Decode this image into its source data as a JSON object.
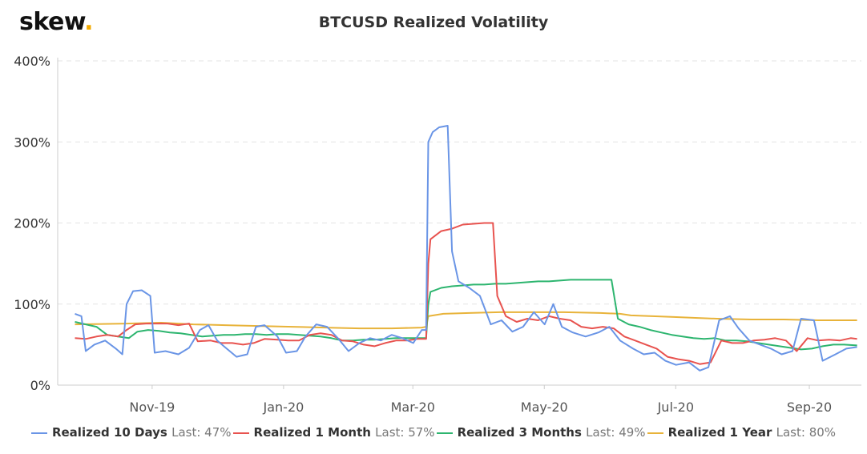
{
  "brand": {
    "name": "skew",
    "dot": "."
  },
  "chart_data": {
    "type": "line",
    "title": "BTCUSD Realized Volatility",
    "xlabel": "",
    "ylabel": "",
    "ylim": [
      0,
      400
    ],
    "yticks": [
      "0%",
      "100%",
      "200%",
      "300%",
      "400%"
    ],
    "xticks": [
      "Nov-19",
      "Jan-20",
      "Mar-20",
      "May-20",
      "Jul-20",
      "Sep-20"
    ],
    "grid": "horizontal dashed",
    "legend_position": "bottom",
    "series": [
      {
        "name": "Realized 10 Days",
        "last_label": "Last: 47%",
        "color": "#6a95e6",
        "points": [
          [
            "2019-10-01",
            88
          ],
          [
            "2019-10-04",
            85
          ],
          [
            "2019-10-06",
            42
          ],
          [
            "2019-10-10",
            50
          ],
          [
            "2019-10-15",
            55
          ],
          [
            "2019-10-20",
            45
          ],
          [
            "2019-10-23",
            38
          ],
          [
            "2019-10-25",
            100
          ],
          [
            "2019-10-28",
            116
          ],
          [
            "2019-11-01",
            117
          ],
          [
            "2019-11-05",
            110
          ],
          [
            "2019-11-07",
            40
          ],
          [
            "2019-11-12",
            42
          ],
          [
            "2019-11-18",
            38
          ],
          [
            "2019-11-23",
            46
          ],
          [
            "2019-11-28",
            68
          ],
          [
            "2019-12-02",
            74
          ],
          [
            "2019-12-06",
            55
          ],
          [
            "2019-12-10",
            46
          ],
          [
            "2019-12-15",
            35
          ],
          [
            "2019-12-20",
            38
          ],
          [
            "2019-12-24",
            72
          ],
          [
            "2019-12-28",
            74
          ],
          [
            "2020-01-03",
            60
          ],
          [
            "2020-01-07",
            40
          ],
          [
            "2020-01-12",
            42
          ],
          [
            "2020-01-16",
            60
          ],
          [
            "2020-01-21",
            75
          ],
          [
            "2020-01-26",
            72
          ],
          [
            "2020-01-31",
            58
          ],
          [
            "2020-02-05",
            42
          ],
          [
            "2020-02-10",
            52
          ],
          [
            "2020-02-15",
            58
          ],
          [
            "2020-02-20",
            55
          ],
          [
            "2020-02-25",
            62
          ],
          [
            "2020-03-01",
            58
          ],
          [
            "2020-03-06",
            52
          ],
          [
            "2020-03-10",
            68
          ],
          [
            "2020-03-12",
            68
          ],
          [
            "2020-03-13",
            300
          ],
          [
            "2020-03-15",
            312
          ],
          [
            "2020-03-18",
            318
          ],
          [
            "2020-03-22",
            320
          ],
          [
            "2020-03-24",
            165
          ],
          [
            "2020-03-27",
            128
          ],
          [
            "2020-04-01",
            120
          ],
          [
            "2020-04-06",
            110
          ],
          [
            "2020-04-11",
            75
          ],
          [
            "2020-04-16",
            80
          ],
          [
            "2020-04-21",
            66
          ],
          [
            "2020-04-26",
            72
          ],
          [
            "2020-05-01",
            90
          ],
          [
            "2020-05-06",
            75
          ],
          [
            "2020-05-10",
            100
          ],
          [
            "2020-05-14",
            72
          ],
          [
            "2020-05-19",
            65
          ],
          [
            "2020-05-25",
            60
          ],
          [
            "2020-05-31",
            65
          ],
          [
            "2020-06-05",
            72
          ],
          [
            "2020-06-10",
            55
          ],
          [
            "2020-06-16",
            45
          ],
          [
            "2020-06-21",
            38
          ],
          [
            "2020-06-26",
            40
          ],
          [
            "2020-07-01",
            30
          ],
          [
            "2020-07-06",
            25
          ],
          [
            "2020-07-12",
            28
          ],
          [
            "2020-07-17",
            18
          ],
          [
            "2020-07-21",
            22
          ],
          [
            "2020-07-26",
            80
          ],
          [
            "2020-07-31",
            85
          ],
          [
            "2020-08-04",
            70
          ],
          [
            "2020-08-09",
            55
          ],
          [
            "2020-08-14",
            50
          ],
          [
            "2020-08-19",
            45
          ],
          [
            "2020-08-24",
            38
          ],
          [
            "2020-08-29",
            42
          ],
          [
            "2020-09-02",
            82
          ],
          [
            "2020-09-08",
            80
          ],
          [
            "2020-09-12",
            30
          ],
          [
            "2020-09-18",
            38
          ],
          [
            "2020-09-23",
            45
          ],
          [
            "2020-09-28",
            47
          ]
        ]
      },
      {
        "name": "Realized 1 Month",
        "last_label": "Last: 57%",
        "color": "#e8534f",
        "points": [
          [
            "2019-10-01",
            58
          ],
          [
            "2019-10-06",
            57
          ],
          [
            "2019-10-11",
            60
          ],
          [
            "2019-10-16",
            62
          ],
          [
            "2019-10-21",
            60
          ],
          [
            "2019-10-25",
            68
          ],
          [
            "2019-10-29",
            75
          ],
          [
            "2019-11-03",
            76
          ],
          [
            "2019-11-08",
            76
          ],
          [
            "2019-11-13",
            76
          ],
          [
            "2019-11-18",
            74
          ],
          [
            "2019-11-23",
            76
          ],
          [
            "2019-11-27",
            54
          ],
          [
            "2019-12-03",
            55
          ],
          [
            "2019-12-08",
            52
          ],
          [
            "2019-12-13",
            52
          ],
          [
            "2019-12-18",
            50
          ],
          [
            "2019-12-23",
            52
          ],
          [
            "2019-12-28",
            57
          ],
          [
            "2020-01-03",
            56
          ],
          [
            "2020-01-08",
            55
          ],
          [
            "2020-01-13",
            55
          ],
          [
            "2020-01-18",
            62
          ],
          [
            "2020-01-23",
            64
          ],
          [
            "2020-01-28",
            62
          ],
          [
            "2020-02-02",
            55
          ],
          [
            "2020-02-07",
            54
          ],
          [
            "2020-02-12",
            50
          ],
          [
            "2020-02-17",
            48
          ],
          [
            "2020-02-22",
            52
          ],
          [
            "2020-02-27",
            55
          ],
          [
            "2020-03-03",
            55
          ],
          [
            "2020-03-08",
            57
          ],
          [
            "2020-03-12",
            57
          ],
          [
            "2020-03-13",
            150
          ],
          [
            "2020-03-14",
            180
          ],
          [
            "2020-03-19",
            190
          ],
          [
            "2020-03-24",
            193
          ],
          [
            "2020-03-29",
            198
          ],
          [
            "2020-04-03",
            199
          ],
          [
            "2020-04-08",
            200
          ],
          [
            "2020-04-12",
            200
          ],
          [
            "2020-04-14",
            110
          ],
          [
            "2020-04-18",
            85
          ],
          [
            "2020-04-23",
            78
          ],
          [
            "2020-04-28",
            82
          ],
          [
            "2020-05-03",
            80
          ],
          [
            "2020-05-08",
            85
          ],
          [
            "2020-05-13",
            82
          ],
          [
            "2020-05-18",
            80
          ],
          [
            "2020-05-23",
            72
          ],
          [
            "2020-05-28",
            70
          ],
          [
            "2020-06-02",
            72
          ],
          [
            "2020-06-07",
            70
          ],
          [
            "2020-06-12",
            60
          ],
          [
            "2020-06-17",
            55
          ],
          [
            "2020-06-22",
            50
          ],
          [
            "2020-06-27",
            45
          ],
          [
            "2020-07-02",
            35
          ],
          [
            "2020-07-07",
            32
          ],
          [
            "2020-07-12",
            30
          ],
          [
            "2020-07-17",
            26
          ],
          [
            "2020-07-22",
            28
          ],
          [
            "2020-07-27",
            55
          ],
          [
            "2020-08-01",
            52
          ],
          [
            "2020-08-06",
            52
          ],
          [
            "2020-08-11",
            55
          ],
          [
            "2020-08-16",
            56
          ],
          [
            "2020-08-21",
            58
          ],
          [
            "2020-08-26",
            55
          ],
          [
            "2020-08-31",
            42
          ],
          [
            "2020-09-05",
            58
          ],
          [
            "2020-09-10",
            55
          ],
          [
            "2020-09-15",
            56
          ],
          [
            "2020-09-20",
            55
          ],
          [
            "2020-09-25",
            58
          ],
          [
            "2020-09-28",
            57
          ]
        ]
      },
      {
        "name": "Realized 3 Months",
        "last_label": "Last: 49%",
        "color": "#2db56f",
        "points": [
          [
            "2019-10-01",
            78
          ],
          [
            "2019-10-06",
            75
          ],
          [
            "2019-10-11",
            72
          ],
          [
            "2019-10-16",
            62
          ],
          [
            "2019-10-21",
            60
          ],
          [
            "2019-10-26",
            58
          ],
          [
            "2019-10-30",
            66
          ],
          [
            "2019-11-04",
            68
          ],
          [
            "2019-11-09",
            67
          ],
          [
            "2019-11-14",
            65
          ],
          [
            "2019-11-19",
            64
          ],
          [
            "2019-11-24",
            62
          ],
          [
            "2019-11-29",
            60
          ],
          [
            "2019-12-04",
            61
          ],
          [
            "2019-12-09",
            62
          ],
          [
            "2019-12-14",
            62
          ],
          [
            "2019-12-19",
            63
          ],
          [
            "2019-12-24",
            63
          ],
          [
            "2019-12-29",
            62
          ],
          [
            "2020-01-03",
            63
          ],
          [
            "2020-01-08",
            63
          ],
          [
            "2020-01-13",
            62
          ],
          [
            "2020-01-18",
            61
          ],
          [
            "2020-01-23",
            60
          ],
          [
            "2020-01-28",
            58
          ],
          [
            "2020-02-02",
            55
          ],
          [
            "2020-02-07",
            55
          ],
          [
            "2020-02-12",
            56
          ],
          [
            "2020-02-17",
            56
          ],
          [
            "2020-02-22",
            57
          ],
          [
            "2020-02-27",
            58
          ],
          [
            "2020-03-03",
            58
          ],
          [
            "2020-03-08",
            58
          ],
          [
            "2020-03-12",
            58
          ],
          [
            "2020-03-13",
            100
          ],
          [
            "2020-03-14",
            115
          ],
          [
            "2020-03-19",
            120
          ],
          [
            "2020-03-24",
            122
          ],
          [
            "2020-03-29",
            123
          ],
          [
            "2020-04-03",
            124
          ],
          [
            "2020-04-08",
            124
          ],
          [
            "2020-04-13",
            125
          ],
          [
            "2020-04-18",
            125
          ],
          [
            "2020-04-23",
            126
          ],
          [
            "2020-04-28",
            127
          ],
          [
            "2020-05-03",
            128
          ],
          [
            "2020-05-08",
            128
          ],
          [
            "2020-05-13",
            129
          ],
          [
            "2020-05-18",
            130
          ],
          [
            "2020-05-23",
            130
          ],
          [
            "2020-05-28",
            130
          ],
          [
            "2020-06-02",
            130
          ],
          [
            "2020-06-06",
            130
          ],
          [
            "2020-06-09",
            82
          ],
          [
            "2020-06-14",
            75
          ],
          [
            "2020-06-19",
            72
          ],
          [
            "2020-06-24",
            68
          ],
          [
            "2020-06-29",
            65
          ],
          [
            "2020-07-04",
            62
          ],
          [
            "2020-07-09",
            60
          ],
          [
            "2020-07-14",
            58
          ],
          [
            "2020-07-19",
            57
          ],
          [
            "2020-07-24",
            58
          ],
          [
            "2020-07-29",
            55
          ],
          [
            "2020-08-03",
            55
          ],
          [
            "2020-08-08",
            54
          ],
          [
            "2020-08-13",
            52
          ],
          [
            "2020-08-18",
            50
          ],
          [
            "2020-08-23",
            48
          ],
          [
            "2020-08-28",
            46
          ],
          [
            "2020-09-02",
            44
          ],
          [
            "2020-09-07",
            45
          ],
          [
            "2020-09-12",
            48
          ],
          [
            "2020-09-17",
            50
          ],
          [
            "2020-09-22",
            50
          ],
          [
            "2020-09-28",
            49
          ]
        ]
      },
      {
        "name": "Realized 1 Year",
        "last_label": "Last: 80%",
        "color": "#e8b33a",
        "points": [
          [
            "2019-10-01",
            75
          ],
          [
            "2019-10-25",
            76
          ],
          [
            "2019-11-10",
            77
          ],
          [
            "2019-11-25",
            75
          ],
          [
            "2019-12-10",
            74
          ],
          [
            "2019-12-25",
            73
          ],
          [
            "2020-01-10",
            72
          ],
          [
            "2020-01-25",
            71
          ],
          [
            "2020-02-10",
            70
          ],
          [
            "2020-02-25",
            70
          ],
          [
            "2020-03-10",
            71
          ],
          [
            "2020-03-12",
            72
          ],
          [
            "2020-03-13",
            85
          ],
          [
            "2020-03-20",
            88
          ],
          [
            "2020-04-01",
            89
          ],
          [
            "2020-04-15",
            90
          ],
          [
            "2020-05-01",
            90
          ],
          [
            "2020-05-15",
            90
          ],
          [
            "2020-06-01",
            89
          ],
          [
            "2020-06-10",
            88
          ],
          [
            "2020-06-15",
            86
          ],
          [
            "2020-06-25",
            85
          ],
          [
            "2020-07-05",
            84
          ],
          [
            "2020-07-15",
            83
          ],
          [
            "2020-07-25",
            82
          ],
          [
            "2020-08-10",
            81
          ],
          [
            "2020-08-25",
            81
          ],
          [
            "2020-09-10",
            80
          ],
          [
            "2020-09-28",
            80
          ]
        ]
      }
    ]
  }
}
